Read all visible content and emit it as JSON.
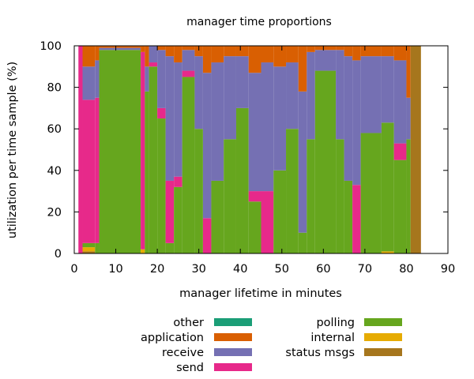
{
  "chart_data": {
    "type": "area",
    "title": "manager time proportions",
    "xlabel": "manager lifetime in minutes",
    "ylabel": "utilization per time sample (%)",
    "xlim": [
      0,
      90
    ],
    "ylim": [
      0,
      100
    ],
    "xticks": [
      "0",
      "10",
      "20",
      "30",
      "40",
      "50",
      "60",
      "70",
      "80",
      "90"
    ],
    "yticks": [
      "0",
      "20",
      "40",
      "60",
      "80",
      "100"
    ],
    "grid": false,
    "legend_position": "bottom",
    "stack_order": [
      "status msgs",
      "internal",
      "polling",
      "send",
      "receive",
      "application",
      "other"
    ],
    "legend": [
      {
        "name": "other",
        "color": "#1b9e77"
      },
      {
        "name": "application",
        "color": "#d95f02"
      },
      {
        "name": "receive",
        "color": "#7570b3"
      },
      {
        "name": "send",
        "color": "#e7298a"
      },
      {
        "name": "polling",
        "color": "#66a61e"
      },
      {
        "name": "internal",
        "color": "#e6ab02"
      },
      {
        "name": "status msgs",
        "color": "#a6761d"
      }
    ],
    "samples": [
      {
        "x0": 1.0,
        "x1": 2.0,
        "values": {
          "status msgs": 0,
          "internal": 0,
          "polling": 0,
          "send": 100,
          "receive": 0,
          "application": 0
        }
      },
      {
        "x0": 2.0,
        "x1": 5.0,
        "values": {
          "status msgs": 1,
          "internal": 2,
          "polling": 2,
          "send": 69,
          "receive": 16,
          "application": 10
        }
      },
      {
        "x0": 5.0,
        "x1": 6.0,
        "values": {
          "status msgs": 0,
          "internal": 0,
          "polling": 5,
          "send": 70,
          "receive": 18,
          "application": 7
        }
      },
      {
        "x0": 6.0,
        "x1": 16.0,
        "values": {
          "status msgs": 0,
          "internal": 0,
          "polling": 98,
          "send": 0,
          "receive": 1,
          "application": 1
        }
      },
      {
        "x0": 16.0,
        "x1": 17.0,
        "values": {
          "status msgs": 0,
          "internal": 2,
          "polling": 0,
          "send": 95,
          "receive": 0,
          "application": 3
        }
      },
      {
        "x0": 17.0,
        "x1": 18.0,
        "values": {
          "status msgs": 0,
          "internal": 0,
          "polling": 78,
          "send": 0,
          "receive": 12,
          "application": 10
        }
      },
      {
        "x0": 18.0,
        "x1": 20.0,
        "values": {
          "status msgs": 0,
          "internal": 0,
          "polling": 90,
          "send": 2,
          "receive": 8,
          "application": 0
        }
      },
      {
        "x0": 20.0,
        "x1": 22.0,
        "values": {
          "status msgs": 0,
          "internal": 0,
          "polling": 65,
          "send": 5,
          "receive": 28,
          "application": 2
        }
      },
      {
        "x0": 22.0,
        "x1": 24.0,
        "values": {
          "status msgs": 0,
          "internal": 0,
          "polling": 5,
          "send": 30,
          "receive": 60,
          "application": 5
        }
      },
      {
        "x0": 24.0,
        "x1": 26.0,
        "values": {
          "status msgs": 0,
          "internal": 0,
          "polling": 32,
          "send": 5,
          "receive": 55,
          "application": 8
        }
      },
      {
        "x0": 26.0,
        "x1": 29.0,
        "values": {
          "status msgs": 0,
          "internal": 0,
          "polling": 85,
          "send": 3,
          "receive": 10,
          "application": 2
        }
      },
      {
        "x0": 29.0,
        "x1": 31.0,
        "values": {
          "status msgs": 0,
          "internal": 0,
          "polling": 60,
          "send": 0,
          "receive": 35,
          "application": 5
        }
      },
      {
        "x0": 31.0,
        "x1": 33.0,
        "values": {
          "status msgs": 0,
          "internal": 0,
          "polling": 0,
          "send": 17,
          "receive": 70,
          "application": 13
        }
      },
      {
        "x0": 33.0,
        "x1": 36.0,
        "values": {
          "status msgs": 0,
          "internal": 0,
          "polling": 35,
          "send": 0,
          "receive": 57,
          "application": 8
        }
      },
      {
        "x0": 36.0,
        "x1": 39.0,
        "values": {
          "status msgs": 0,
          "internal": 0,
          "polling": 55,
          "send": 0,
          "receive": 40,
          "application": 5
        }
      },
      {
        "x0": 39.0,
        "x1": 42.0,
        "values": {
          "status msgs": 0,
          "internal": 0,
          "polling": 70,
          "send": 0,
          "receive": 25,
          "application": 5
        }
      },
      {
        "x0": 42.0,
        "x1": 45.0,
        "values": {
          "status msgs": 0,
          "internal": 0,
          "polling": 25,
          "send": 5,
          "receive": 57,
          "application": 13
        }
      },
      {
        "x0": 45.0,
        "x1": 48.0,
        "values": {
          "status msgs": 0,
          "internal": 0,
          "polling": 0,
          "send": 30,
          "receive": 62,
          "application": 8
        }
      },
      {
        "x0": 48.0,
        "x1": 51.0,
        "values": {
          "status msgs": 0,
          "internal": 0,
          "polling": 40,
          "send": 0,
          "receive": 50,
          "application": 10
        }
      },
      {
        "x0": 51.0,
        "x1": 54.0,
        "values": {
          "status msgs": 0,
          "internal": 0,
          "polling": 60,
          "send": 0,
          "receive": 32,
          "application": 8
        }
      },
      {
        "x0": 54.0,
        "x1": 56.0,
        "values": {
          "status msgs": 0,
          "internal": 0,
          "polling": 10,
          "send": 0,
          "receive": 68,
          "application": 22
        }
      },
      {
        "x0": 56.0,
        "x1": 58.0,
        "values": {
          "status msgs": 0,
          "internal": 0,
          "polling": 55,
          "send": 0,
          "receive": 42,
          "application": 3
        }
      },
      {
        "x0": 58.0,
        "x1": 63.0,
        "values": {
          "status msgs": 0,
          "internal": 0,
          "polling": 88,
          "send": 0,
          "receive": 10,
          "application": 2
        }
      },
      {
        "x0": 63.0,
        "x1": 65.0,
        "values": {
          "status msgs": 0,
          "internal": 0,
          "polling": 55,
          "send": 0,
          "receive": 43,
          "application": 2
        }
      },
      {
        "x0": 65.0,
        "x1": 67.0,
        "values": {
          "status msgs": 0,
          "internal": 0,
          "polling": 35,
          "send": 0,
          "receive": 60,
          "application": 5
        }
      },
      {
        "x0": 67.0,
        "x1": 69.0,
        "values": {
          "status msgs": 0,
          "internal": 0,
          "polling": 0,
          "send": 33,
          "receive": 60,
          "application": 7
        }
      },
      {
        "x0": 69.0,
        "x1": 74.0,
        "values": {
          "status msgs": 0,
          "internal": 0,
          "polling": 58,
          "send": 0,
          "receive": 37,
          "application": 5
        }
      },
      {
        "x0": 74.0,
        "x1": 77.0,
        "values": {
          "status msgs": 0,
          "internal": 1,
          "polling": 62,
          "send": 0,
          "receive": 32,
          "application": 5
        }
      },
      {
        "x0": 77.0,
        "x1": 80.0,
        "values": {
          "status msgs": 0,
          "internal": 0,
          "polling": 45,
          "send": 8,
          "receive": 40,
          "application": 7
        }
      },
      {
        "x0": 80.0,
        "x1": 81.0,
        "values": {
          "status msgs": 0,
          "internal": 0,
          "polling": 55,
          "send": 0,
          "receive": 20,
          "application": 25
        }
      },
      {
        "x0": 81.0,
        "x1": 83.5,
        "values": {
          "status msgs": 100,
          "internal": 0,
          "polling": 0,
          "send": 0,
          "receive": 0,
          "application": 0
        }
      }
    ]
  }
}
